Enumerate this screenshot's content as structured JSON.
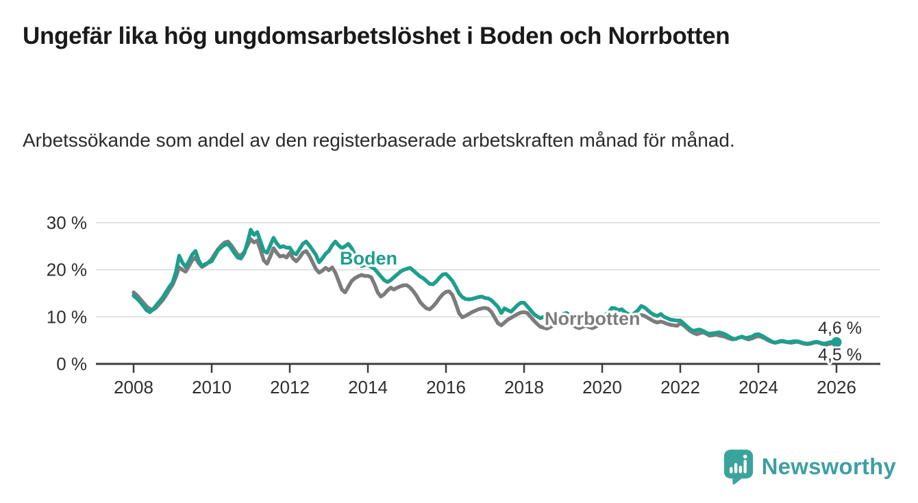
{
  "header": {
    "title": "Ungefär lika hög ungdomsarbetslöshet i Boden och Norrbotten",
    "subtitle": "Arbetssökande som andel av den registerbaserade arbetskraften månad för månad."
  },
  "chart_data": {
    "type": "line",
    "x_start": "2008-01",
    "x_end": "2026-01",
    "x_frequency": "monthly",
    "unit": "%",
    "ylim": [
      0,
      32
    ],
    "grid": "horizontal",
    "yticks": [
      {
        "value": 0,
        "label": "0 %"
      },
      {
        "value": 10,
        "label": "10 %"
      },
      {
        "value": 20,
        "label": "20 %"
      },
      {
        "value": 30,
        "label": "30 %"
      }
    ],
    "xticks": [
      "2008",
      "2010",
      "2012",
      "2014",
      "2016",
      "2018",
      "2020",
      "2022",
      "2024",
      "2026"
    ],
    "series": [
      {
        "name": "Norrbotten",
        "color": "#7c7c7c",
        "end_label": "4,5 %",
        "values": [
          15.2,
          14.6,
          13.8,
          13.0,
          12.2,
          11.7,
          11.5,
          12.0,
          12.8,
          13.6,
          14.6,
          15.8,
          16.8,
          18.5,
          20.5,
          20.0,
          19.6,
          20.8,
          22.0,
          22.6,
          21.4,
          20.6,
          21.0,
          21.6,
          22.3,
          23.4,
          24.4,
          25.2,
          25.8,
          26.0,
          25.2,
          24.2,
          23.2,
          23.0,
          23.8,
          25.2,
          26.5,
          25.8,
          26.2,
          24.2,
          22.0,
          21.3,
          22.8,
          24.6,
          23.6,
          22.8,
          23.0,
          22.6,
          23.6,
          22.4,
          21.8,
          22.6,
          23.6,
          24.0,
          23.0,
          21.6,
          20.2,
          19.4,
          19.8,
          20.4,
          19.9,
          20.5,
          19.4,
          17.6,
          15.8,
          15.2,
          16.4,
          17.6,
          18.2,
          18.6,
          18.9,
          18.7,
          18.7,
          18.4,
          17.0,
          15.2,
          14.3,
          14.8,
          15.6,
          16.2,
          15.8,
          16.2,
          16.5,
          16.7,
          16.7,
          16.2,
          15.4,
          14.4,
          13.2,
          12.4,
          11.8,
          11.6,
          12.2,
          13.0,
          14.0,
          14.8,
          15.3,
          15.4,
          14.6,
          12.8,
          10.8,
          9.9,
          10.2,
          10.6,
          11.0,
          11.3,
          11.6,
          11.8,
          11.9,
          11.7,
          11.0,
          9.8,
          8.6,
          8.2,
          8.8,
          9.4,
          9.8,
          10.2,
          10.6,
          10.9,
          11.0,
          10.8,
          10.0,
          9.2,
          8.5,
          7.9,
          7.7,
          7.5,
          7.8,
          8.2,
          8.6,
          8.9,
          9.0,
          9.1,
          8.7,
          8.2,
          7.8,
          7.6,
          7.9,
          8.1,
          7.8,
          7.6,
          7.9,
          8.3,
          8.8,
          9.0,
          9.6,
          10.2,
          10.4,
          10.2,
          10.4,
          10.0,
          9.6,
          9.4,
          9.6,
          10.0,
          10.4,
          10.2,
          9.8,
          9.4,
          9.0,
          8.8,
          9.0,
          8.8,
          8.5,
          8.3,
          8.2,
          8.1,
          8.6,
          8.2,
          7.6,
          7.0,
          6.6,
          6.3,
          6.5,
          6.7,
          6.4,
          6.0,
          6.1,
          6.2,
          6.0,
          5.9,
          5.7,
          5.4,
          5.2,
          5.3,
          5.6,
          5.7,
          5.4,
          5.2,
          5.4,
          5.7,
          5.9,
          5.7,
          5.4,
          5.0,
          4.7,
          4.5,
          4.7,
          4.9,
          4.8,
          4.6,
          4.5,
          4.6,
          4.7,
          4.5,
          4.3,
          4.2,
          4.3,
          4.5,
          4.6,
          4.4,
          4.2,
          4.1,
          4.3,
          4.4,
          4.5
        ]
      },
      {
        "name": "Boden",
        "color": "#1e9e8d",
        "end_label": "4,6 %",
        "values": [
          14.5,
          13.9,
          13.2,
          12.3,
          11.4,
          11.0,
          11.6,
          12.5,
          13.3,
          14.2,
          15.3,
          16.4,
          17.3,
          19.5,
          23.0,
          21.5,
          20.6,
          21.8,
          23.2,
          24.0,
          22.0,
          20.8,
          21.2,
          21.5,
          21.8,
          23.0,
          24.2,
          24.8,
          25.3,
          25.5,
          24.6,
          23.5,
          22.6,
          22.4,
          23.5,
          25.8,
          28.5,
          27.4,
          28.0,
          26.0,
          24.0,
          23.6,
          25.2,
          26.8,
          25.6,
          24.8,
          25.0,
          24.7,
          24.7,
          23.6,
          23.3,
          24.4,
          25.5,
          26.0,
          25.2,
          24.2,
          23.2,
          21.6,
          22.4,
          23.4,
          24.0,
          25.2,
          26.0,
          25.2,
          24.6,
          25.0,
          25.5,
          24.6,
          23.2,
          21.6,
          20.8,
          21.0,
          21.0,
          20.6,
          20.2,
          19.4,
          18.6,
          17.8,
          17.4,
          17.8,
          18.4,
          19.0,
          19.6,
          20.0,
          20.2,
          20.4,
          19.8,
          19.2,
          18.6,
          18.2,
          17.6,
          17.0,
          16.9,
          17.5,
          18.3,
          19.0,
          19.1,
          18.4,
          17.6,
          16.4,
          15.0,
          14.2,
          13.8,
          13.7,
          13.8,
          14.0,
          14.2,
          14.3,
          14.0,
          13.9,
          13.5,
          12.8,
          12.1,
          10.8,
          11.8,
          11.4,
          11.1,
          11.8,
          12.5,
          13.0,
          13.0,
          12.2,
          11.4,
          10.6,
          10.1,
          9.7,
          10.0,
          10.4,
          10.0,
          9.7,
          9.9,
          10.2,
          10.6,
          10.8,
          10.4,
          10.0,
          9.7,
          9.9,
          10.3,
          10.0,
          9.6,
          9.4,
          9.6,
          10.0,
          10.2,
          10.4,
          11.0,
          11.9,
          11.8,
          11.4,
          11.6,
          11.0,
          10.6,
          10.4,
          10.8,
          11.4,
          12.3,
          12.0,
          11.4,
          10.8,
          10.4,
          10.2,
          10.6,
          10.0,
          9.7,
          9.4,
          9.3,
          9.2,
          9.2,
          8.6,
          8.0,
          7.4,
          7.0,
          7.2,
          7.3,
          7.0,
          6.6,
          6.4,
          6.5,
          6.6,
          6.7,
          6.5,
          6.2,
          5.8,
          5.4,
          5.3,
          5.6,
          5.8,
          5.5,
          5.6,
          5.8,
          6.2,
          6.3,
          6.0,
          5.6,
          5.2,
          4.8,
          4.5,
          4.6,
          4.8,
          4.7,
          4.6,
          4.7,
          4.8,
          4.8,
          4.6,
          4.4,
          4.3,
          4.4,
          4.6,
          4.7,
          4.5,
          4.3,
          4.4,
          4.6,
          4.7,
          4.6
        ]
      }
    ],
    "colors": {
      "grid": "#d9d9d9",
      "axis": "#3d3d3d",
      "tick_label": "#2e2e2e",
      "value_label": "#2e2e2e"
    }
  },
  "footer": {
    "brand": "Newsworthy",
    "brand_color": "#3e9fa3",
    "logo_mark_color": "#3aa39c"
  }
}
